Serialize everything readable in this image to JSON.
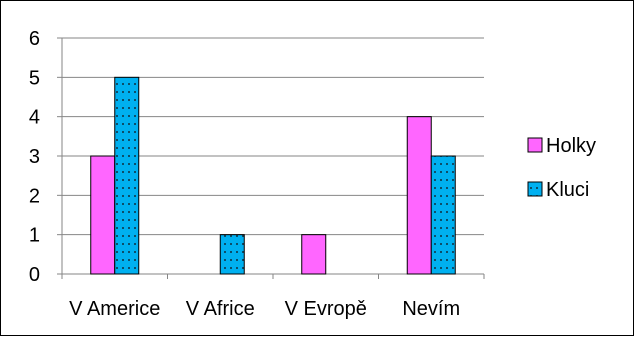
{
  "chart_data": {
    "type": "bar",
    "title": "",
    "categories": [
      "V Americe",
      "V Africe",
      "V Evropě",
      "Nevím"
    ],
    "series": [
      {
        "name": "Holky",
        "values": [
          3,
          0,
          1,
          4
        ],
        "color": "#ff66ff",
        "pattern": "solid"
      },
      {
        "name": "Kluci",
        "values": [
          5,
          1,
          0,
          3
        ],
        "color": "#00b0f0",
        "pattern": "dotted"
      }
    ],
    "ylim": [
      0,
      6
    ],
    "yticks": [
      0,
      1,
      2,
      3,
      4,
      5,
      6
    ],
    "grid": true,
    "legend": "right"
  }
}
